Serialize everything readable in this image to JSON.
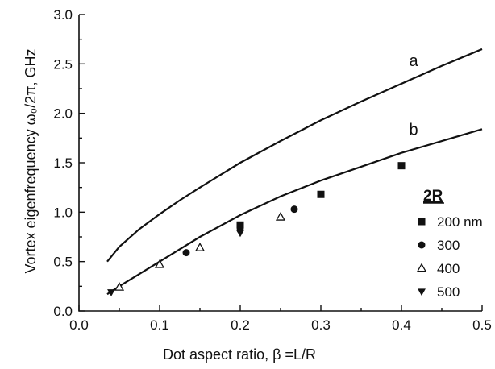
{
  "chart_data": {
    "type": "scatter",
    "title": "",
    "xlabel": "Dot aspect ratio, β =L/R",
    "ylabel": "Vortex eigenfrequency ω₀/2π, GHz",
    "xlim": [
      0.0,
      0.5
    ],
    "ylim": [
      0.0,
      3.0
    ],
    "xticks": [
      0.0,
      0.1,
      0.2,
      0.3,
      0.4,
      0.5
    ],
    "xtick_labels": [
      "0.0",
      "0.1",
      "0.2",
      "0.3",
      "0.4",
      "0.5"
    ],
    "yticks": [
      0.0,
      0.5,
      1.0,
      1.5,
      2.0,
      2.5,
      3.0
    ],
    "ytick_labels": [
      "0.0",
      "0.5",
      "1.0",
      "1.5",
      "2.0",
      "2.5",
      "3.0"
    ],
    "grid": false,
    "legend": {
      "title": "2R",
      "placement": "right"
    },
    "lines": [
      {
        "label": "a",
        "x": [
          0.035,
          0.05,
          0.075,
          0.1,
          0.125,
          0.15,
          0.2,
          0.25,
          0.3,
          0.35,
          0.4,
          0.45,
          0.5
        ],
        "y": [
          0.5,
          0.65,
          0.83,
          0.98,
          1.12,
          1.25,
          1.5,
          1.72,
          1.93,
          2.12,
          2.3,
          2.48,
          2.65
        ]
      },
      {
        "label": "b",
        "x": [
          0.035,
          0.05,
          0.1,
          0.15,
          0.2,
          0.25,
          0.3,
          0.35,
          0.4,
          0.45,
          0.5
        ],
        "y": [
          0.17,
          0.25,
          0.5,
          0.75,
          0.97,
          1.16,
          1.32,
          1.46,
          1.6,
          1.72,
          1.84
        ]
      }
    ],
    "series": [
      {
        "name": "200 nm",
        "marker": "square",
        "x": [
          0.2,
          0.3,
          0.4
        ],
        "y": [
          0.87,
          1.18,
          1.47
        ]
      },
      {
        "name": "300",
        "marker": "circle",
        "x": [
          0.133,
          0.2,
          0.267
        ],
        "y": [
          0.59,
          0.82,
          1.03
        ]
      },
      {
        "name": "400",
        "marker": "triangle-up-open",
        "x": [
          0.05,
          0.1,
          0.15,
          0.25
        ],
        "y": [
          0.24,
          0.47,
          0.64,
          0.95
        ]
      },
      {
        "name": "500",
        "marker": "triangle-down",
        "x": [
          0.04,
          0.2
        ],
        "y": [
          0.19,
          0.79
        ]
      }
    ]
  }
}
